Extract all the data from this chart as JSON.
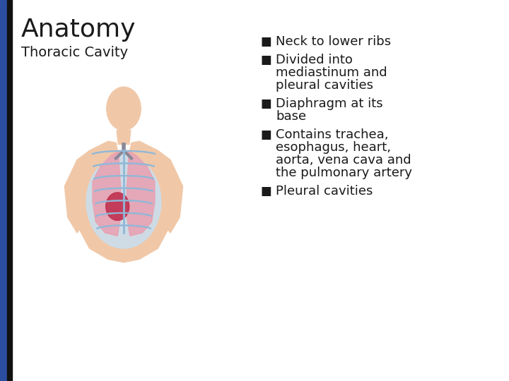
{
  "title": "Anatomy",
  "subtitle": "Thoracic Cavity",
  "bullet_points": [
    "Neck to lower ribs",
    "Divided into\nmediastinum and\npleural cavities",
    "Diaphragm at its\nbase",
    "Contains trachea,\nesophagus, heart,\naorta, vena cava and\nthe pulmonary artery",
    "Pleural cavities"
  ],
  "bg_color": "#ffffff",
  "title_color": "#1a1a1a",
  "text_color": "#1a1a1a",
  "bullet_color": "#1a1a1a",
  "sidebar_blue": "#2b4ea0",
  "sidebar_black": "#111111",
  "title_fontsize": 26,
  "subtitle_fontsize": 14,
  "bullet_fontsize": 13,
  "skin_color": "#f0c8a8",
  "lung_color": "#e8a0b0",
  "rib_color": "#c8dff0",
  "rib_line_color": "#90b8d8",
  "heart_color": "#c03050",
  "trachea_color": "#888899"
}
